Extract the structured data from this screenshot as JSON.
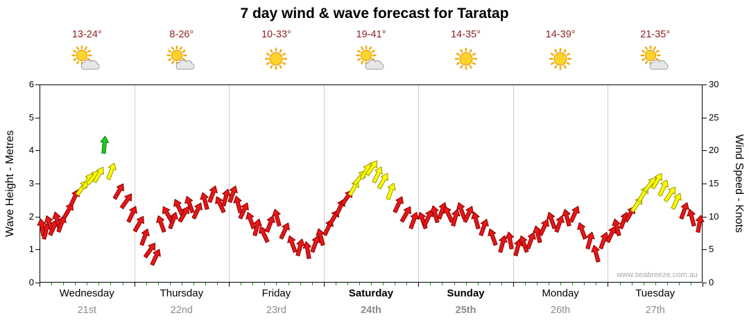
{
  "title": "7 day wind & wave forecast for Taratap",
  "watermark": "www.seabreeze.com.au",
  "colors": {
    "temp_text": "#8b1f1f",
    "date_text": "#8a8a8a",
    "grid": "#cccccc",
    "axis": "#000000",
    "minor_tick": "#00a000",
    "sun": "#ffd42a",
    "sun_ray": "#f2a900",
    "sun_stroke": "#e08a00",
    "cloud": "#e6e6e6",
    "cloud_stroke": "#9c9c9c",
    "arrow": {
      "r": {
        "fill": "#e81717",
        "stroke": "#8f0000"
      },
      "y": {
        "fill": "#ffff00",
        "stroke": "#9a9a00"
      },
      "g": {
        "fill": "#1ecc1e",
        "stroke": "#0a7a0a"
      }
    }
  },
  "chart_data": {
    "type": "wind-arrows",
    "title": "7 day wind & wave forecast for Taratap",
    "y_left": {
      "label": "Wave Height - Metres",
      "min": 0,
      "max": 6,
      "ticks": [
        0,
        1,
        2,
        3,
        4,
        5,
        6
      ]
    },
    "y_right": {
      "label": "Wind Speed - Knots",
      "min": 0,
      "max": 30,
      "ticks": [
        0,
        5,
        10,
        15,
        20,
        25,
        30
      ]
    },
    "days": [
      {
        "name": "Wednesday",
        "date": "21st",
        "temp": "13-24°",
        "icon": "sun-cloud",
        "weekend": false
      },
      {
        "name": "Thursday",
        "date": "22nd",
        "temp": "8-26°",
        "icon": "sun-cloud",
        "weekend": false
      },
      {
        "name": "Friday",
        "date": "23rd",
        "temp": "10-33°",
        "icon": "sun",
        "weekend": false
      },
      {
        "name": "Saturday",
        "date": "24th",
        "temp": "19-41°",
        "icon": "sun-cloud",
        "weekend": true
      },
      {
        "name": "Sunday",
        "date": "25th",
        "temp": "14-35°",
        "icon": "sun",
        "weekend": true
      },
      {
        "name": "Monday",
        "date": "26th",
        "temp": "14-39°",
        "icon": "sun",
        "weekend": false
      },
      {
        "name": "Tuesday",
        "date": "27th",
        "temp": "21-35°",
        "icon": "sun-cloud",
        "weekend": false
      }
    ],
    "point_format": [
      "day_index",
      "day_fraction",
      "wind_speed_knots",
      "color(r=red,y=yellow,g=green)",
      "rotation_deg"
    ],
    "points": [
      [
        0,
        0.02,
        8.5,
        "r",
        -10
      ],
      [
        0,
        0.06,
        8,
        "r",
        15
      ],
      [
        0,
        0.1,
        9,
        "r",
        -20
      ],
      [
        0,
        0.14,
        8.5,
        "r",
        25
      ],
      [
        0,
        0.18,
        9.5,
        "r",
        -15
      ],
      [
        0,
        0.22,
        9,
        "r",
        20
      ],
      [
        0,
        0.3,
        11,
        "r",
        30
      ],
      [
        0,
        0.36,
        13,
        "r",
        25
      ],
      [
        0,
        0.44,
        14.5,
        "y",
        35
      ],
      [
        0,
        0.5,
        15.5,
        "y",
        30
      ],
      [
        0,
        0.56,
        16,
        "y",
        40
      ],
      [
        0,
        0.62,
        16.5,
        "y",
        30
      ],
      [
        0,
        0.68,
        21,
        "g",
        5
      ],
      [
        0,
        0.75,
        17,
        "y",
        20
      ],
      [
        0,
        0.83,
        14,
        "r",
        30
      ],
      [
        0,
        0.91,
        12.5,
        "r",
        35
      ],
      [
        0,
        0.97,
        10.5,
        "r",
        25
      ],
      [
        1,
        0.04,
        9,
        "r",
        30
      ],
      [
        1,
        0.1,
        7,
        "r",
        20
      ],
      [
        1,
        0.16,
        5,
        "r",
        35
      ],
      [
        1,
        0.22,
        4,
        "r",
        25
      ],
      [
        1,
        0.28,
        9,
        "r",
        -20
      ],
      [
        1,
        0.34,
        10.5,
        "r",
        -30
      ],
      [
        1,
        0.4,
        9.5,
        "r",
        20
      ],
      [
        1,
        0.46,
        11.5,
        "r",
        -25
      ],
      [
        1,
        0.52,
        10.5,
        "r",
        30
      ],
      [
        1,
        0.58,
        12,
        "r",
        -20
      ],
      [
        1,
        0.66,
        11,
        "r",
        25
      ],
      [
        1,
        0.74,
        12.5,
        "r",
        -15
      ],
      [
        1,
        0.82,
        13.5,
        "r",
        20
      ],
      [
        1,
        0.9,
        12,
        "r",
        -25
      ],
      [
        1,
        0.96,
        13,
        "r",
        15
      ],
      [
        2,
        0.03,
        13.5,
        "r",
        20
      ],
      [
        2,
        0.09,
        12,
        "r",
        -15
      ],
      [
        2,
        0.15,
        11,
        "r",
        25
      ],
      [
        2,
        0.22,
        9.5,
        "r",
        -20
      ],
      [
        2,
        0.29,
        8.5,
        "r",
        15
      ],
      [
        2,
        0.36,
        7.5,
        "r",
        -25
      ],
      [
        2,
        0.43,
        9,
        "r",
        20
      ],
      [
        2,
        0.5,
        10,
        "r",
        -15
      ],
      [
        2,
        0.58,
        8,
        "r",
        25
      ],
      [
        2,
        0.66,
        6,
        "r",
        -20
      ],
      [
        2,
        0.74,
        5.5,
        "r",
        15
      ],
      [
        2,
        0.82,
        5,
        "r",
        -10
      ],
      [
        2,
        0.9,
        6,
        "r",
        20
      ],
      [
        2,
        0.96,
        7,
        "r",
        -15
      ],
      [
        3,
        0.04,
        8.5,
        "r",
        25
      ],
      [
        3,
        0.1,
        10,
        "r",
        30
      ],
      [
        3,
        0.17,
        11.5,
        "r",
        25
      ],
      [
        3,
        0.24,
        13,
        "r",
        35
      ],
      [
        3,
        0.31,
        14.5,
        "y",
        30
      ],
      [
        3,
        0.38,
        16,
        "y",
        40
      ],
      [
        3,
        0.44,
        17,
        "y",
        30
      ],
      [
        3,
        0.5,
        17.5,
        "y",
        35
      ],
      [
        3,
        0.56,
        16.5,
        "y",
        25
      ],
      [
        3,
        0.62,
        15.5,
        "y",
        30
      ],
      [
        3,
        0.7,
        14,
        "y",
        20
      ],
      [
        3,
        0.78,
        12,
        "r",
        25
      ],
      [
        3,
        0.86,
        10.5,
        "r",
        30
      ],
      [
        3,
        0.94,
        9.5,
        "r",
        20
      ],
      [
        4,
        0.04,
        9.5,
        "r",
        -20
      ],
      [
        4,
        0.1,
        10,
        "r",
        25
      ],
      [
        4,
        0.17,
        10.5,
        "r",
        -15
      ],
      [
        4,
        0.24,
        11,
        "r",
        20
      ],
      [
        4,
        0.31,
        10.5,
        "r",
        -25
      ],
      [
        4,
        0.38,
        10,
        "r",
        15
      ],
      [
        4,
        0.45,
        11,
        "r",
        -20
      ],
      [
        4,
        0.52,
        10.5,
        "r",
        25
      ],
      [
        4,
        0.6,
        9.5,
        "r",
        -15
      ],
      [
        4,
        0.68,
        8.5,
        "r",
        20
      ],
      [
        4,
        0.78,
        7,
        "r",
        -20
      ],
      [
        4,
        0.88,
        6,
        "r",
        15
      ],
      [
        4,
        0.96,
        6.5,
        "r",
        -10
      ],
      [
        5,
        0.04,
        5.5,
        "r",
        15
      ],
      [
        5,
        0.11,
        6,
        "r",
        -20
      ],
      [
        5,
        0.18,
        6.5,
        "r",
        20
      ],
      [
        5,
        0.25,
        7.5,
        "r",
        -15
      ],
      [
        5,
        0.32,
        8.5,
        "r",
        25
      ],
      [
        5,
        0.4,
        9.5,
        "r",
        -20
      ],
      [
        5,
        0.48,
        9,
        "r",
        20
      ],
      [
        5,
        0.56,
        10,
        "r",
        -15
      ],
      [
        5,
        0.64,
        10.5,
        "r",
        25
      ],
      [
        5,
        0.72,
        8,
        "r",
        -20
      ],
      [
        5,
        0.8,
        6.5,
        "r",
        15
      ],
      [
        5,
        0.87,
        4.5,
        "r",
        -15
      ],
      [
        5,
        0.95,
        6.5,
        "r",
        20
      ],
      [
        6,
        0.03,
        7.5,
        "r",
        25
      ],
      [
        6,
        0.09,
        8.5,
        "r",
        -15
      ],
      [
        6,
        0.16,
        9.5,
        "r",
        20
      ],
      [
        6,
        0.23,
        10.5,
        "r",
        30
      ],
      [
        6,
        0.3,
        12,
        "y",
        35
      ],
      [
        6,
        0.37,
        13.5,
        "y",
        30
      ],
      [
        6,
        0.44,
        15,
        "y",
        40
      ],
      [
        6,
        0.51,
        15.5,
        "y",
        30
      ],
      [
        6,
        0.58,
        14.5,
        "y",
        25
      ],
      [
        6,
        0.65,
        13.5,
        "y",
        35
      ],
      [
        6,
        0.72,
        12.5,
        "y",
        25
      ],
      [
        6,
        0.8,
        11,
        "r",
        20
      ],
      [
        6,
        0.88,
        10,
        "r",
        -15
      ],
      [
        6,
        0.96,
        9,
        "r",
        10
      ]
    ]
  }
}
